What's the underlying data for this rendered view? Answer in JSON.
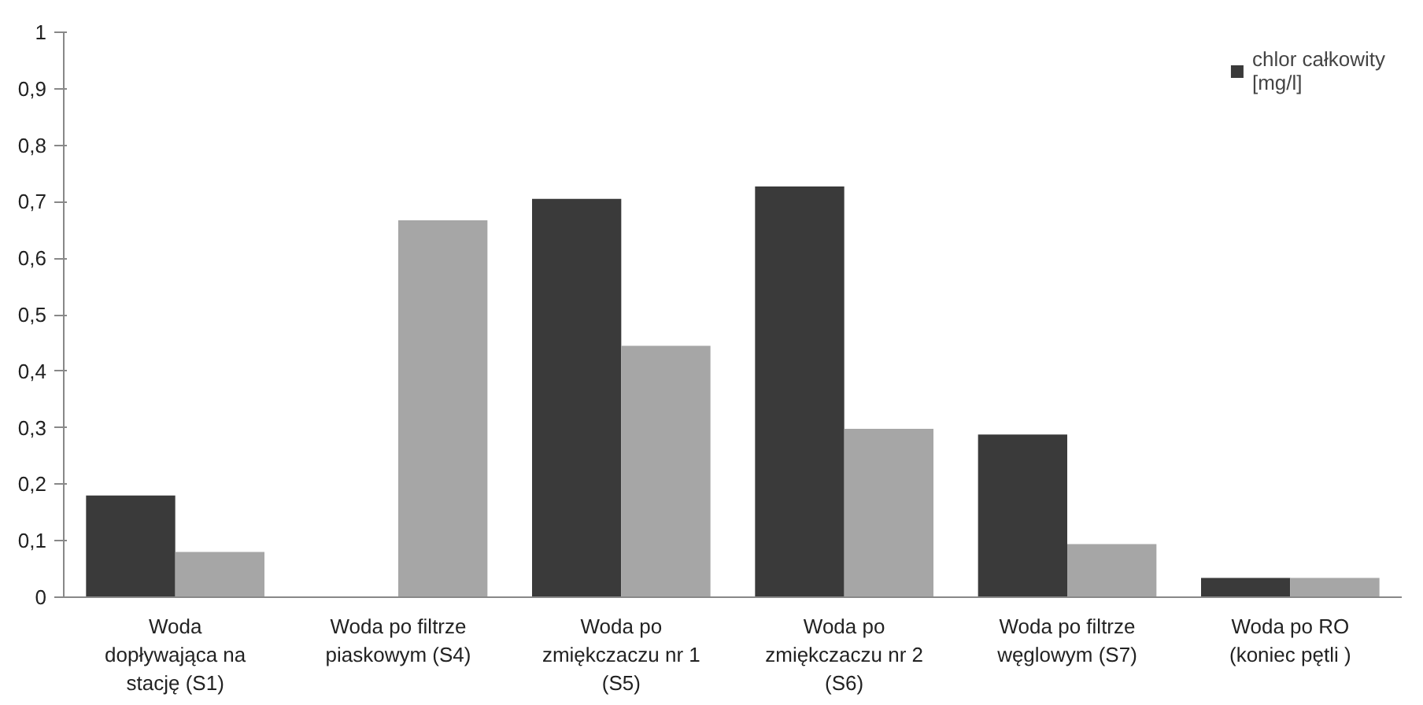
{
  "chart_data": {
    "type": "bar",
    "categories": [
      "Woda\ndopływająca na\nstację (S1)",
      "Woda po filtrze\npiaskowym (S4)",
      "Woda po\nzmiękczaczu nr 1\n(S5)",
      "Woda po\nzmiękczaczu nr 2\n(S6)",
      "Woda po filtrze\nwęglowym (S7)",
      "Woda po RO\n(koniec pętli )"
    ],
    "series": [
      {
        "name": "chlor całkowity\n[mg/l]",
        "color": "#3a3a3a",
        "values": [
          0.18,
          0,
          0.705,
          0.727,
          0.288,
          0.034
        ]
      },
      {
        "color": "#a6a6a6",
        "values": [
          0.08,
          0.667,
          0.445,
          0.298,
          0.094,
          0.034
        ]
      }
    ],
    "ylim": [
      0,
      1
    ],
    "yticks": [
      0,
      {
        "value": 0.1,
        "label": "0,1"
      },
      {
        "value": 0.2,
        "label": "0,2"
      },
      {
        "value": 0.3,
        "label": "0,3"
      },
      {
        "value": 0.4,
        "label": "0,4"
      },
      {
        "value": 0.5,
        "label": "0,5"
      },
      {
        "value": 0.6,
        "label": "0,6"
      },
      {
        "value": 0.7,
        "label": "0,7"
      },
      {
        "value": 0.8,
        "label": "0,8"
      },
      {
        "value": 0.9,
        "label": "0,9"
      },
      1
    ],
    "grid": false,
    "legend": "top right"
  }
}
